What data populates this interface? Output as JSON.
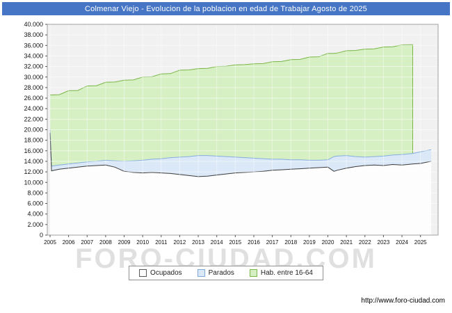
{
  "title_bar": {
    "text": "Colmenar Viejo - Evolucion de la poblacion en edad de Trabajar Agosto de 2025",
    "bg_color": "#4575c4",
    "text_color": "#ffffff"
  },
  "watermark": {
    "text": "FORO-CIUDAD.COM"
  },
  "footer": {
    "url": "http://www.foro-ciudad.com"
  },
  "legend": {
    "items": [
      {
        "label": "Ocupados",
        "fill": "#fdfdfd",
        "border": "#555555"
      },
      {
        "label": "Parados",
        "fill": "#dae8f7",
        "border": "#7da9d8"
      },
      {
        "label": "Hab. entre 16-64",
        "fill": "#d6efc3",
        "border": "#7ab648"
      }
    ]
  },
  "chart_data": {
    "type": "area",
    "title": "Colmenar Viejo - Evolucion de la poblacion en edad de Trabajar Agosto de 2025",
    "xlabel": "",
    "ylabel": "",
    "ylim": [
      0,
      40000
    ],
    "ytick_step": 2000,
    "ytick_labels": [
      "0",
      "2.000",
      "4.000",
      "6.000",
      "8.000",
      "10.000",
      "12.000",
      "14.000",
      "16.000",
      "18.000",
      "20.000",
      "22.000",
      "24.000",
      "26.000",
      "28.000",
      "30.000",
      "32.000",
      "34.000",
      "36.000",
      "38.000",
      "40.000"
    ],
    "xlim": [
      2004.85,
      2025.95
    ],
    "xticks": [
      2005,
      2006,
      2007,
      2008,
      2009,
      2010,
      2011,
      2012,
      2013,
      2014,
      2015,
      2016,
      2017,
      2018,
      2019,
      2020,
      2021,
      2022,
      2023,
      2024,
      2025
    ],
    "xtick_labels": [
      "2005",
      "2006",
      "2007",
      "2008",
      "2009",
      "2010",
      "2011",
      "2012",
      "2013",
      "2014",
      "2015",
      "2016",
      "2017",
      "2018",
      "2019",
      "2020",
      "2021",
      "2022",
      "2023",
      "2024",
      "2025"
    ],
    "grid": true,
    "legend_position": "bottom",
    "plot_background": "#f1f1f1",
    "x": [
      2005.0,
      2005.08,
      2005.5,
      2006.0,
      2006.5,
      2007.0,
      2007.5,
      2008.0,
      2008.5,
      2009.0,
      2009.5,
      2010.0,
      2010.5,
      2011.0,
      2011.5,
      2012.0,
      2012.5,
      2013.0,
      2013.5,
      2014.0,
      2014.5,
      2015.0,
      2015.5,
      2016.0,
      2016.5,
      2017.0,
      2017.5,
      2018.0,
      2018.5,
      2019.0,
      2019.5,
      2020.0,
      2020.33,
      2020.5,
      2021.0,
      2021.5,
      2022.0,
      2022.5,
      2023.0,
      2023.5,
      2024.0,
      2024.58,
      2025.0,
      2025.58
    ],
    "series": [
      {
        "name": "Hab. entre 16-64",
        "role": "total_population_absolute",
        "fill": "#d6efc3",
        "line": "#7ab648",
        "values": [
          26600,
          26600,
          26650,
          27400,
          27450,
          28300,
          28350,
          29000,
          29050,
          29400,
          29450,
          30000,
          30050,
          30600,
          30650,
          31300,
          31350,
          31600,
          31650,
          32000,
          32050,
          32300,
          32350,
          32500,
          32550,
          32900,
          32950,
          33300,
          33350,
          33800,
          33850,
          34500,
          34500,
          34550,
          35000,
          35050,
          35300,
          35350,
          35700,
          35750,
          36100,
          36150,
          null,
          null
        ]
      },
      {
        "name": "Parados",
        "role": "stacked_on_ocupados",
        "fill": "#dae8f7",
        "line": "#85aede",
        "values": [
          700,
          900,
          800,
          800,
          800,
          800,
          800,
          900,
          1200,
          1900,
          2200,
          2400,
          2500,
          2700,
          3000,
          3300,
          3600,
          4000,
          3900,
          3600,
          3300,
          3000,
          2800,
          2600,
          2400,
          2100,
          2000,
          1800,
          1700,
          1500,
          1400,
          1400,
          2800,
          2700,
          2400,
          1900,
          1600,
          1600,
          1800,
          1800,
          2000,
          2000,
          2200,
          2200
        ]
      },
      {
        "name": "Ocupados",
        "role": "base",
        "fill": "#fdfdfd",
        "line": "#3a3a3a",
        "values": [
          19400,
          12200,
          12500,
          12700,
          12900,
          13100,
          13200,
          13300,
          12900,
          12100,
          11900,
          11800,
          11900,
          11800,
          11700,
          11500,
          11300,
          11100,
          11200,
          11400,
          11600,
          11800,
          11900,
          12000,
          12100,
          12300,
          12400,
          12500,
          12600,
          12700,
          12800,
          12900,
          12100,
          12300,
          12700,
          13000,
          13200,
          13300,
          13200,
          13400,
          13300,
          13500,
          13600,
          14000
        ]
      }
    ]
  }
}
